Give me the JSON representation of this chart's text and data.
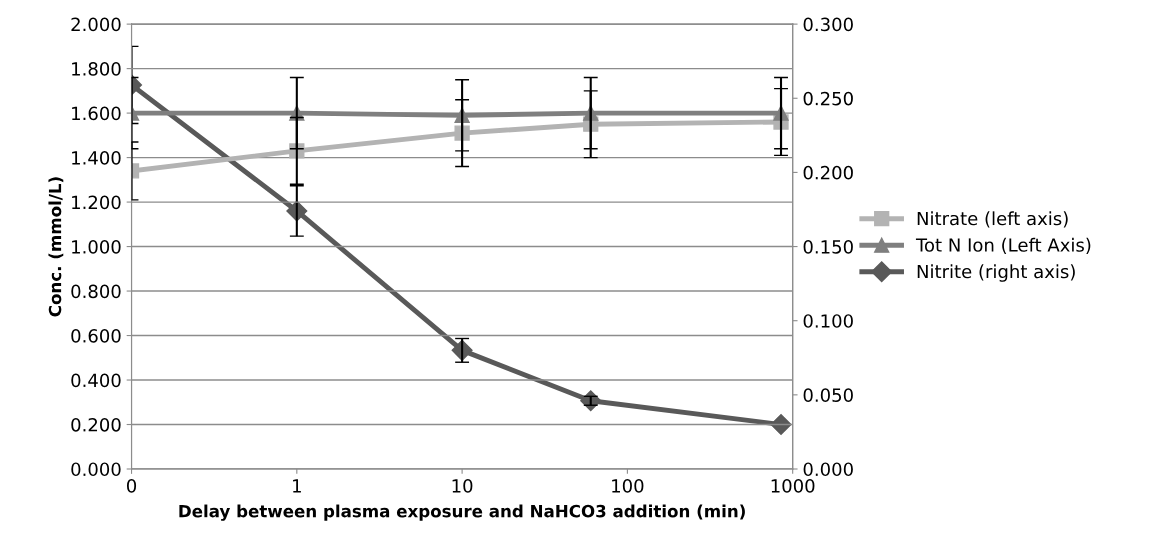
{
  "chart_data": {
    "type": "line",
    "xlabel": "Delay between plasma exposure and NaHCO3 addition (min)",
    "ylabel": "Conc. (mmol/L)",
    "log": "x",
    "xlim": [
      0.1,
      1000
    ],
    "xticks": [
      {
        "value": 0.1,
        "label": "0"
      },
      1,
      10,
      100,
      1000
    ],
    "ylim": [
      0,
      2
    ],
    "yticks": [
      {
        "value": 0,
        "label": "0.000"
      },
      {
        "value": 0.2,
        "label": "0.200"
      },
      {
        "value": 0.4,
        "label": "0.400"
      },
      {
        "value": 0.6,
        "label": "0.600"
      },
      {
        "value": 0.8,
        "label": "0.800"
      },
      {
        "value": 1,
        "label": "1.000"
      },
      {
        "value": 1.2,
        "label": "1.200"
      },
      {
        "value": 1.4,
        "label": "1.400"
      },
      {
        "value": 1.6,
        "label": "1.600"
      },
      {
        "value": 1.8,
        "label": "1.800"
      },
      {
        "value": 2,
        "label": "2.000"
      }
    ],
    "y2lim": [
      0,
      0.3
    ],
    "y2ticks": [
      {
        "value": 0,
        "label": "0.000"
      },
      {
        "value": 0.05,
        "label": "0.050"
      },
      {
        "value": 0.1,
        "label": "0.100"
      },
      {
        "value": 0.15,
        "label": "0.150"
      },
      {
        "value": 0.2,
        "label": "0.200"
      },
      {
        "value": 0.25,
        "label": "0.250"
      },
      {
        "value": 0.3,
        "label": "0.300"
      }
    ],
    "grid": "y",
    "legend": "right",
    "line_style": "solid",
    "x": [
      0.1,
      1,
      10,
      60,
      850
    ],
    "series": [
      {
        "name": "Nitrate (left axis)",
        "color": "#b3b3b3",
        "marker": "square",
        "values": [
          1.34,
          1.43,
          1.51,
          1.55,
          1.56
        ],
        "errors": [
          0.13,
          0.15,
          0.15,
          0.15,
          0.15
        ]
      },
      {
        "name": "Tot N Ion (Left Axis)",
        "color": "#7f7f7f",
        "marker": "triangle",
        "values": [
          1.6,
          1.6,
          1.59,
          1.6,
          1.6
        ],
        "errors": [
          0.16,
          0.16,
          0.16,
          0.16,
          0.16
        ]
      },
      {
        "name": "Nitrite (right axis)",
        "color": "#595959",
        "marker": "diamond",
        "axis": "y2",
        "values": [
          0.259,
          0.174,
          0.08,
          0.046,
          0.03
        ],
        "errors": [
          0.026,
          0.017,
          0.008,
          0.003,
          null
        ]
      }
    ]
  }
}
